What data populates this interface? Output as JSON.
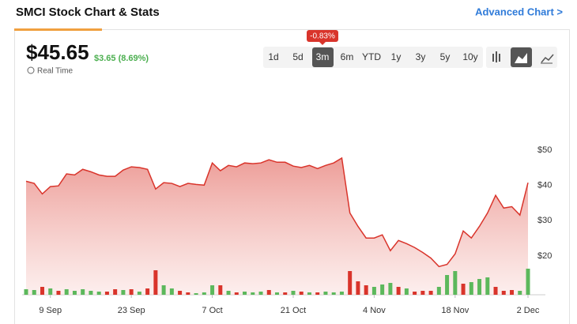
{
  "header": {
    "title": "SMCI Stock Chart & Stats",
    "link": "Advanced Chart >"
  },
  "quote": {
    "price": "$45.65",
    "change": "$3.65 (8.69%)",
    "status": "Real Time"
  },
  "ranges": [
    "1d",
    "5d",
    "3m",
    "6m",
    "YTD",
    "1y",
    "3y",
    "5y",
    "10y"
  ],
  "selected_range": "3m",
  "range_tooltip": "-0.83%",
  "chart_data": {
    "type": "area",
    "x": [
      "4 Sep",
      "5 Sep",
      "6 Sep",
      "9 Sep",
      "10 Sep",
      "11 Sep",
      "12 Sep",
      "13 Sep",
      "16 Sep",
      "17 Sep",
      "18 Sep",
      "19 Sep",
      "20 Sep",
      "23 Sep",
      "24 Sep",
      "25 Sep",
      "26 Sep",
      "27 Sep",
      "30 Sep",
      "1 Oct",
      "2 Oct",
      "3 Oct",
      "4 Oct",
      "7 Oct",
      "8 Oct",
      "9 Oct",
      "10 Oct",
      "11 Oct",
      "14 Oct",
      "15 Oct",
      "16 Oct",
      "17 Oct",
      "18 Oct",
      "21 Oct",
      "22 Oct",
      "23 Oct",
      "24 Oct",
      "25 Oct",
      "28 Oct",
      "29 Oct",
      "30 Oct",
      "31 Oct",
      "1 Nov",
      "4 Nov",
      "5 Nov",
      "6 Nov",
      "7 Nov",
      "8 Nov",
      "11 Nov",
      "12 Nov",
      "13 Nov",
      "14 Nov",
      "15 Nov",
      "18 Nov",
      "19 Nov",
      "20 Nov",
      "21 Nov",
      "22 Nov",
      "25 Nov",
      "26 Nov",
      "27 Nov",
      "29 Nov",
      "2 Dec"
    ],
    "series": [
      {
        "color": "#d9342b",
        "values": [
          41.2,
          40.6,
          37.6,
          39.7,
          39.9,
          43.3,
          43.0,
          44.6,
          43.9,
          43.0,
          42.6,
          42.6,
          44.4,
          45.3,
          45.1,
          44.6,
          39.0,
          40.8,
          40.6,
          39.7,
          40.6,
          40.3,
          40.1,
          46.4,
          44.2,
          45.7,
          45.3,
          46.4,
          46.2,
          46.4,
          47.3,
          46.6,
          46.6,
          45.5,
          45.1,
          45.7,
          44.8,
          45.7,
          46.4,
          47.8,
          32.2,
          28.4,
          25.1,
          25.1,
          26.0,
          21.5,
          24.4,
          23.5,
          22.4,
          21.0,
          19.4,
          17.0,
          17.6,
          20.6,
          27.1,
          25.1,
          28.4,
          32.2,
          37.2,
          33.6,
          34.0,
          31.6,
          40.8
        ]
      }
    ],
    "volume": {
      "values": [
        7,
        6,
        10,
        8,
        5,
        7,
        5,
        7,
        5,
        4,
        4,
        7,
        6,
        7,
        4,
        8,
        31,
        12,
        8,
        5,
        3,
        2,
        3,
        12,
        12,
        5,
        3,
        4,
        3,
        4,
        6,
        3,
        3,
        5,
        4,
        3,
        3,
        4,
        3,
        4,
        30,
        17,
        12,
        10,
        13,
        15,
        10,
        8,
        4,
        5,
        5,
        10,
        25,
        30,
        14,
        16,
        20,
        22,
        10,
        5,
        6,
        5,
        33
      ],
      "colors": [
        "#5cb85c",
        "#5cb85c",
        "#d9342b",
        "#5cb85c",
        "#d9342b",
        "#5cb85c",
        "#5cb85c",
        "#5cb85c",
        "#5cb85c",
        "#5cb85c",
        "#d9342b",
        "#d9342b",
        "#5cb85c",
        "#d9342b",
        "#5cb85c",
        "#d9342b",
        "#d9342b",
        "#5cb85c",
        "#5cb85c",
        "#d9342b",
        "#d9342b",
        "#5cb85c",
        "#5cb85c",
        "#5cb85c",
        "#d9342b",
        "#5cb85c",
        "#d9342b",
        "#5cb85c",
        "#5cb85c",
        "#5cb85c",
        "#d9342b",
        "#5cb85c",
        "#d9342b",
        "#5cb85c",
        "#d9342b",
        "#5cb85c",
        "#d9342b",
        "#5cb85c",
        "#5cb85c",
        "#5cb85c",
        "#d9342b",
        "#d9342b",
        "#d9342b",
        "#5cb85c",
        "#5cb85c",
        "#5cb85c",
        "#d9342b",
        "#5cb85c",
        "#d9342b",
        "#d9342b",
        "#d9342b",
        "#5cb85c",
        "#5cb85c",
        "#5cb85c",
        "#d9342b",
        "#5cb85c",
        "#5cb85c",
        "#5cb85c",
        "#d9342b",
        "#d9342b",
        "#d9342b",
        "#5cb85c",
        "#5cb85c"
      ]
    },
    "ylim": [
      9,
      59
    ],
    "yticks": [
      {
        "value": 20,
        "label": "$20"
      },
      {
        "value": 30,
        "label": "$30"
      },
      {
        "value": 40,
        "label": "$40"
      },
      {
        "value": 50,
        "label": "$50"
      }
    ],
    "xticks": [
      "9 Sep",
      "23 Sep",
      "7 Oct",
      "21 Oct",
      "4 Nov",
      "18 Nov",
      "2 Dec"
    ]
  }
}
